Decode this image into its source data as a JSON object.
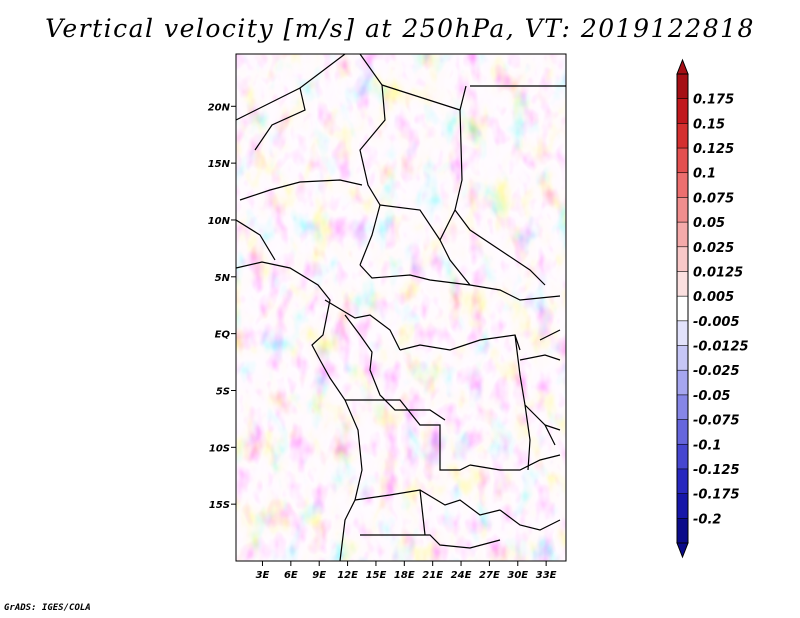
{
  "chart_data": {
    "type": "heatmap",
    "title": "Vertical velocity [m/s] at 250hPa, VT: 2019122818",
    "variable": "Vertical velocity",
    "units": "m/s",
    "level": "250hPa",
    "valid_time": "2019122818",
    "x_ticks": [
      {
        "value": 3,
        "label": "3E"
      },
      {
        "value": 6,
        "label": "6E"
      },
      {
        "value": 9,
        "label": "9E"
      },
      {
        "value": 12,
        "label": "12E"
      },
      {
        "value": 15,
        "label": "15E"
      },
      {
        "value": 18,
        "label": "18E"
      },
      {
        "value": 21,
        "label": "21E"
      },
      {
        "value": 24,
        "label": "24E"
      },
      {
        "value": 27,
        "label": "27E"
      },
      {
        "value": 30,
        "label": "30E"
      },
      {
        "value": 33,
        "label": "33E"
      }
    ],
    "y_ticks": [
      {
        "value": 20,
        "label": "20N"
      },
      {
        "value": 15,
        "label": "15N"
      },
      {
        "value": 10,
        "label": "10N"
      },
      {
        "value": 5,
        "label": "5N"
      },
      {
        "value": 0,
        "label": "EQ"
      },
      {
        "value": -5,
        "label": "5S"
      },
      {
        "value": -10,
        "label": "10S"
      },
      {
        "value": -15,
        "label": "15S"
      }
    ],
    "xlim": [
      0.2,
      35.1
    ],
    "ylim": [
      -20,
      24.6
    ],
    "colorbar": {
      "labels": [
        "0.175",
        "0.15",
        "0.125",
        "0.1",
        "0.075",
        "0.05",
        "0.025",
        "0.0125",
        "0.005",
        "-0.005",
        "-0.0125",
        "-0.025",
        "-0.05",
        "-0.075",
        "-0.1",
        "-0.125",
        "-0.175",
        "-0.2"
      ],
      "colors": [
        "#a50f15",
        "#c0181e",
        "#d43030",
        "#e35050",
        "#ec6f6f",
        "#f08e8e",
        "#f4aaaa",
        "#f8c8c8",
        "#fbe0e0",
        "#ffffff",
        "#e2e2fb",
        "#c6c6f6",
        "#a6a6ef",
        "#8686e6",
        "#6666dc",
        "#4646cf",
        "#2828bf",
        "#1616a8",
        "#0b0b8a"
      ]
    }
  },
  "footer": "GrADS: IGES/COLA"
}
